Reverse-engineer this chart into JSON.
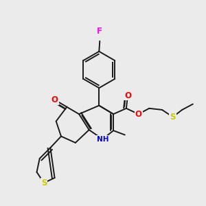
{
  "bg_color": "#ebebeb",
  "bond_color": "#1a1a1a",
  "atom_colors": {
    "F": "#ff00ff",
    "O": "#ff0000",
    "N": "#0000cc",
    "S": "#cccc00",
    "C": "#1a1a1a"
  },
  "lw": 1.4,
  "fontsize": 7.0
}
